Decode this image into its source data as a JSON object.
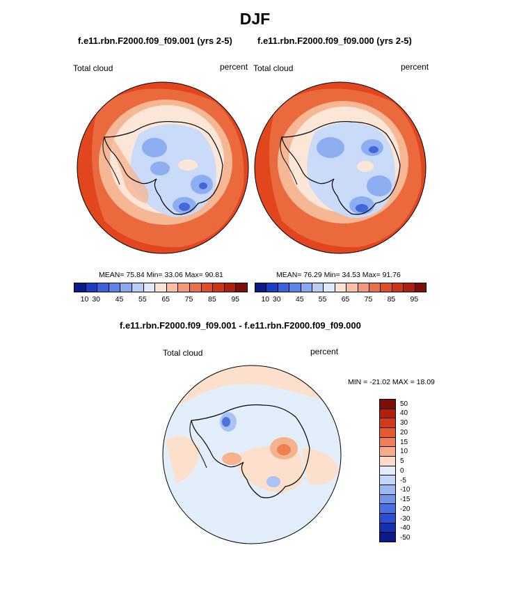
{
  "figure": {
    "title": "DJF",
    "panel_left_title": "f.e11.rbn.F2000.f09_f09.001 (yrs 2-5)",
    "panel_right_title": "f.e11.rbn.F2000.f09_f09.000 (yrs 2-5)",
    "diff_title": "f.e11.rbn.F2000.f09_f09.001 - f.e11.rbn.F2000.f09_f09.000"
  },
  "panels": {
    "left": {
      "variable": "Total cloud",
      "units": "percent",
      "stats": "MEAN=  75.84  Min=  33.06  Max=  90.81"
    },
    "right": {
      "variable": "Total cloud",
      "units": "percent",
      "stats": "MEAN=  76.29  Min=  34.53  Max=  91.76"
    },
    "diff": {
      "variable": "Total cloud",
      "units": "percent",
      "stats": "MIN = -21.02 MAX =  18.09"
    }
  },
  "colorbar_abs": {
    "colors": [
      "#0a1b8c",
      "#1a3fc4",
      "#3a62de",
      "#5a84ea",
      "#88a9f0",
      "#b6cdf6",
      "#ddeafa",
      "#fbe3d4",
      "#f8bfa3",
      "#f39978",
      "#ec7047",
      "#e24d26",
      "#cf3414",
      "#b0200c",
      "#7e0e08"
    ],
    "labels": [
      "10",
      "30",
      "45",
      "55",
      "65",
      "75",
      "85",
      "95"
    ]
  },
  "colorbar_diff": {
    "colors": [
      "#7e0e08",
      "#b0200c",
      "#d23a18",
      "#e65a30",
      "#f17f55",
      "#f8ab89",
      "#fcdcc6",
      "#e4eefb",
      "#c2d6f7",
      "#9ab9f1",
      "#7096e8",
      "#4a6fe0",
      "#2a4dd2",
      "#1631b0",
      "#0a1a88"
    ],
    "labels": [
      "50",
      "40",
      "30",
      "20",
      "15",
      "10",
      "5",
      "0",
      "-5",
      "-10",
      "-15",
      "-20",
      "-30",
      "-40",
      "-50"
    ]
  },
  "map_colors": {
    "ocean_high": "#e2461f",
    "ocean_mid": "#ea6a3e",
    "coast_light": "#f6b894",
    "ice_pale": "#fbe6d8",
    "blue_light": "#c9dbf8",
    "blue_mid": "#8eaef2",
    "blue_dark": "#4467dc",
    "diff_bg": "#e3eefb",
    "diff_pos": "#fce0cc",
    "diff_pos2": "#f6b28d",
    "diff_pos3": "#ee7f4f",
    "diff_neg": "#a9c3f4",
    "diff_neg2": "#4d72e0"
  }
}
